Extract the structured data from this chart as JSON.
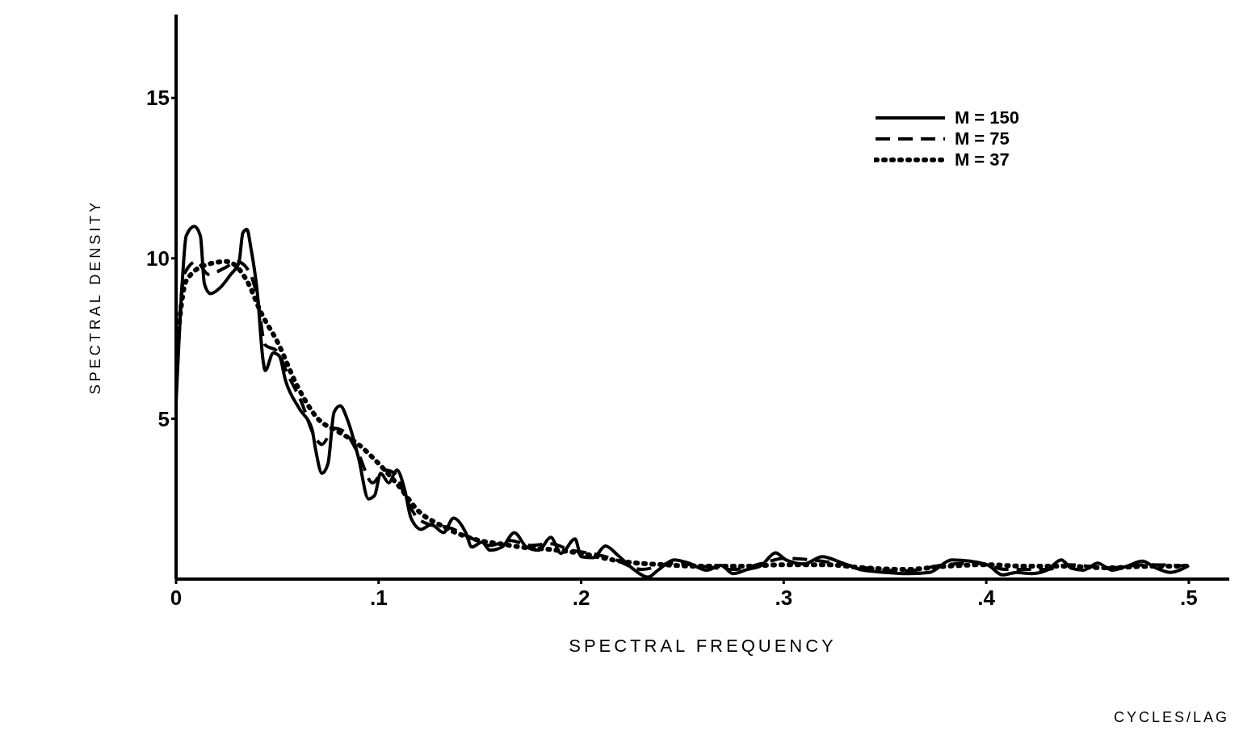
{
  "chart_data": {
    "type": "line",
    "xlabel": "SPECTRAL FREQUENCY",
    "ylabel": "SPECTRAL DENSITY",
    "annotations": [
      "CYCLES/LAG"
    ],
    "xlim": [
      0,
      0.52
    ],
    "xticks": [
      {
        "value": 0,
        "label": "0"
      },
      {
        "value": 0.1,
        "label": ".1"
      },
      {
        "value": 0.2,
        "label": ".2"
      },
      {
        "value": 0.3,
        "label": ".3"
      },
      {
        "value": 0.4,
        "label": ".4"
      },
      {
        "value": 0.5,
        "label": ".5"
      }
    ],
    "ylim": [
      0,
      17.6
    ],
    "yticks": [
      5,
      10,
      15
    ],
    "grid": false,
    "legend": "top right",
    "marker": "none",
    "series": [
      {
        "name": "M = 150",
        "color": "#000000",
        "line_style": "solid",
        "x": [
          0,
          0.003,
          0.005,
          0.009,
          0.012,
          0.014,
          0.017,
          0.022,
          0.027,
          0.031,
          0.033,
          0.035,
          0.037,
          0.04,
          0.043,
          0.044,
          0.048,
          0.051,
          0.054,
          0.061,
          0.067,
          0.069,
          0.072,
          0.075,
          0.078,
          0.081,
          0.085,
          0.09,
          0.095,
          0.098,
          0.101,
          0.105,
          0.109,
          0.113,
          0.116,
          0.121,
          0.126,
          0.132,
          0.137,
          0.143,
          0.146,
          0.151,
          0.155,
          0.161,
          0.167,
          0.173,
          0.179,
          0.185,
          0.19,
          0.197,
          0.2,
          0.206,
          0.212,
          0.218,
          0.226,
          0.233,
          0.238,
          0.246,
          0.253,
          0.262,
          0.269,
          0.275,
          0.282,
          0.289,
          0.296,
          0.301,
          0.31,
          0.319,
          0.329,
          0.339,
          0.35,
          0.361,
          0.372,
          0.383,
          0.392,
          0.401,
          0.408,
          0.415,
          0.422,
          0.43,
          0.437,
          0.442,
          0.448,
          0.455,
          0.462,
          0.469,
          0.477,
          0.484,
          0.491,
          0.5
        ],
        "values": [
          5.5,
          9.2,
          10.7,
          11.0,
          10.7,
          9.2,
          8.9,
          9.1,
          9.5,
          9.85,
          10.8,
          10.9,
          10.3,
          9.0,
          6.8,
          6.5,
          7.05,
          6.95,
          6.2,
          5.3,
          4.7,
          4.0,
          3.3,
          3.6,
          5.2,
          5.4,
          4.9,
          3.8,
          2.5,
          2.6,
          3.3,
          3.0,
          3.4,
          2.75,
          1.9,
          1.55,
          1.7,
          1.45,
          1.9,
          1.45,
          1.0,
          1.15,
          0.9,
          1.0,
          1.45,
          1.0,
          0.9,
          1.3,
          0.8,
          1.25,
          0.7,
          0.67,
          1.03,
          0.75,
          0.3,
          0.06,
          0.28,
          0.6,
          0.5,
          0.28,
          0.43,
          0.17,
          0.3,
          0.43,
          0.82,
          0.6,
          0.47,
          0.7,
          0.5,
          0.28,
          0.21,
          0.17,
          0.21,
          0.6,
          0.56,
          0.43,
          0.13,
          0.21,
          0.17,
          0.28,
          0.6,
          0.34,
          0.28,
          0.5,
          0.28,
          0.39,
          0.56,
          0.34,
          0.21,
          0.43
        ]
      },
      {
        "name": "M = 75",
        "color": "#000000",
        "line_style": "dashed",
        "x": [
          0,
          0.004,
          0.01,
          0.016,
          0.024,
          0.03,
          0.036,
          0.04,
          0.044,
          0.05,
          0.055,
          0.062,
          0.068,
          0.072,
          0.078,
          0.083,
          0.09,
          0.097,
          0.103,
          0.108,
          0.113,
          0.118,
          0.125,
          0.135,
          0.145,
          0.155,
          0.165,
          0.175,
          0.185,
          0.195,
          0.205,
          0.215,
          0.23,
          0.245,
          0.26,
          0.275,
          0.29,
          0.3,
          0.32,
          0.34,
          0.36,
          0.38,
          0.395,
          0.41,
          0.43,
          0.44,
          0.46,
          0.48,
          0.5
        ],
        "values": [
          6,
          9.5,
          9.9,
          9.5,
          9.7,
          9.9,
          9.6,
          8.8,
          7.3,
          7.1,
          6.4,
          5.5,
          4.5,
          4.2,
          4.7,
          4.6,
          3.9,
          3.0,
          3.4,
          3.3,
          2.6,
          2.0,
          1.7,
          1.6,
          1.3,
          1.05,
          1.2,
          1.05,
          1.1,
          0.9,
          0.8,
          0.65,
          0.3,
          0.5,
          0.4,
          0.3,
          0.5,
          0.65,
          0.55,
          0.35,
          0.25,
          0.45,
          0.5,
          0.3,
          0.3,
          0.45,
          0.35,
          0.45,
          0.4
        ]
      },
      {
        "name": "M = 37",
        "color": "#000000",
        "line_style": "dotted",
        "x": [
          0,
          0.005,
          0.015,
          0.025,
          0.035,
          0.042,
          0.05,
          0.06,
          0.07,
          0.08,
          0.09,
          0.1,
          0.11,
          0.12,
          0.13,
          0.14,
          0.15,
          0.16,
          0.17,
          0.18,
          0.2,
          0.22,
          0.24,
          0.26,
          0.28,
          0.3,
          0.32,
          0.34,
          0.36,
          0.38,
          0.4,
          0.42,
          0.44,
          0.46,
          0.48,
          0.5
        ],
        "values": [
          7,
          9.3,
          9.8,
          9.9,
          9.3,
          8.3,
          7.4,
          6.0,
          5.0,
          4.6,
          4.2,
          3.6,
          2.9,
          2.1,
          1.7,
          1.4,
          1.2,
          1.1,
          1.0,
          0.95,
          0.8,
          0.55,
          0.45,
          0.4,
          0.4,
          0.45,
          0.45,
          0.35,
          0.3,
          0.4,
          0.45,
          0.4,
          0.4,
          0.35,
          0.4,
          0.4
        ]
      }
    ]
  }
}
